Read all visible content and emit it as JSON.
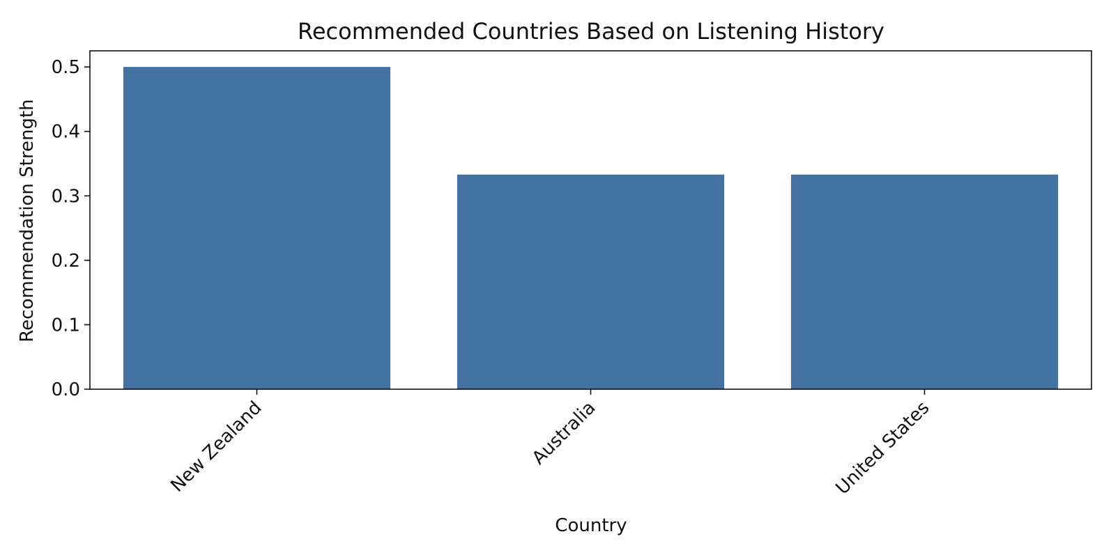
{
  "chart_data": {
    "type": "bar",
    "title": "Recommended Countries Based on Listening History",
    "xlabel": "Country",
    "ylabel": "Recommendation Strength",
    "categories": [
      "New Zealand",
      "Australia",
      "United States"
    ],
    "values": [
      0.5,
      0.333,
      0.333
    ],
    "ylim": [
      0,
      0.525
    ],
    "yticks": [
      "0.0",
      "0.1",
      "0.2",
      "0.3",
      "0.4",
      "0.5"
    ],
    "grid": false,
    "bar_color": "#4472a0"
  }
}
